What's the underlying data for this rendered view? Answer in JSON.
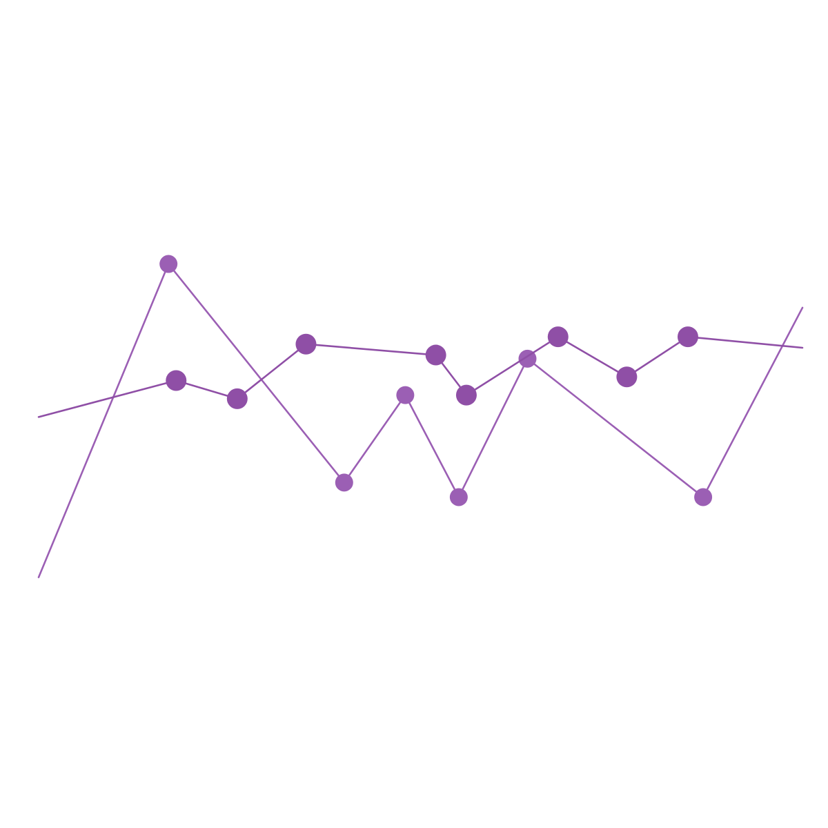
{
  "illustration": {
    "background": "#ffffff",
    "series": [
      {
        "id": "series-a",
        "color": "#9b5fb4",
        "points": [
          [
            0.0,
            0.12
          ],
          [
            0.17,
            0.98
          ],
          [
            0.4,
            0.38
          ],
          [
            0.48,
            0.62
          ],
          [
            0.55,
            0.34
          ],
          [
            0.64,
            0.72
          ],
          [
            0.87,
            0.34
          ],
          [
            1.0,
            0.86
          ]
        ]
      },
      {
        "id": "series-b",
        "color": "#8f4fa6",
        "points": [
          [
            0.0,
            0.56
          ],
          [
            0.18,
            0.66
          ],
          [
            0.26,
            0.61
          ],
          [
            0.35,
            0.76
          ],
          [
            0.52,
            0.73
          ],
          [
            0.56,
            0.62
          ],
          [
            0.68,
            0.78
          ],
          [
            0.77,
            0.67
          ],
          [
            0.85,
            0.78
          ],
          [
            1.0,
            0.75
          ]
        ]
      }
    ]
  }
}
